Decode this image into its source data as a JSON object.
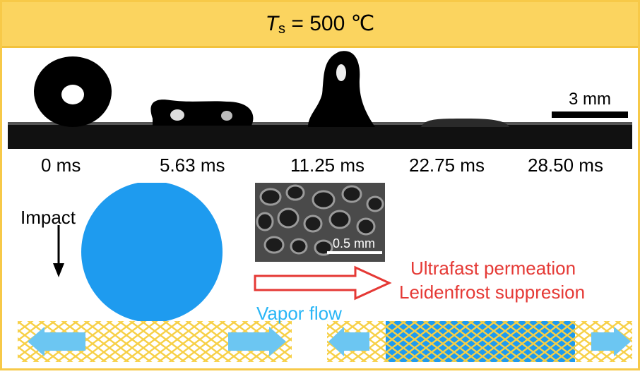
{
  "header": {
    "title_symbol": "T",
    "title_subscript": "s",
    "title_rest": "= 500 ℃"
  },
  "photo": {
    "scale_bar_label": "3 mm",
    "times": [
      "0 ms",
      "5.63 ms",
      "11.25 ms",
      "22.75 ms",
      "28.50 ms"
    ]
  },
  "diagram": {
    "impact_label": "Impact",
    "sem_scale_label": "0.5 mm",
    "vapor_label": "Vapor flow",
    "result_line1": "Ultrafast permeation",
    "result_line2": "Leidenfrost suppresion"
  },
  "colors": {
    "header_bg": "#FBD45F",
    "droplet": "#1E9BEF",
    "mesh": "#F7D046",
    "vapor_arrow": "#6CC6F2",
    "result_text": "#E53935",
    "vapor_text": "#29B6F6"
  }
}
